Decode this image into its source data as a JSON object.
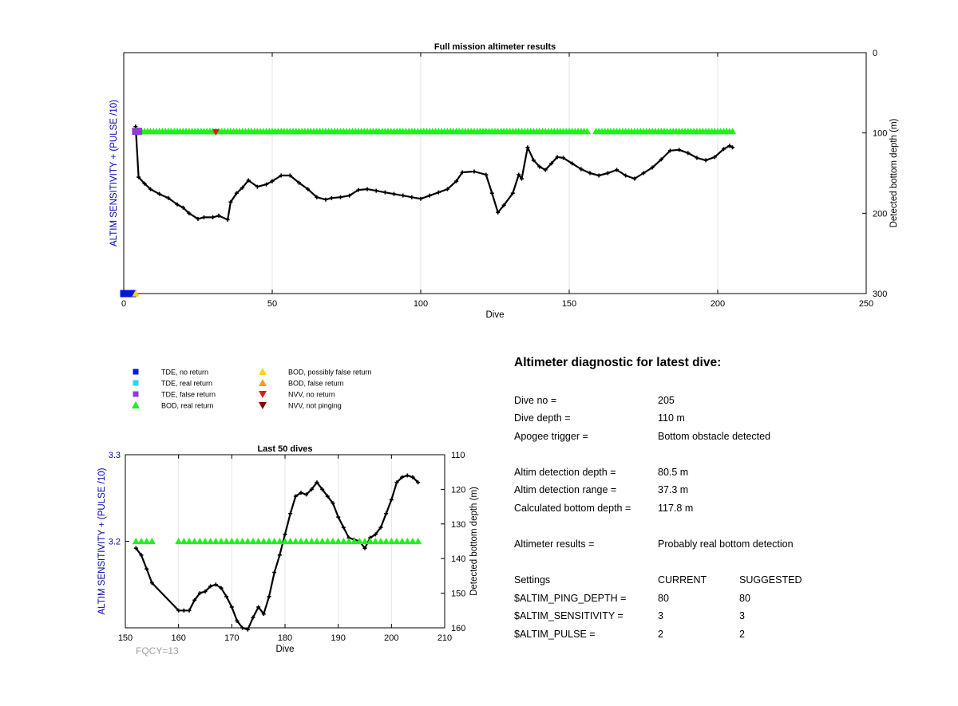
{
  "colors": {
    "axis": "#000000",
    "grid": "#e6e6e6",
    "left_axis_label": "#0000b4",
    "tde_no_return": "#0018d6",
    "tde_real_return": "#28d8f0",
    "tde_false_return": "#8e3fcf",
    "bod_real_return": "#1ff01f",
    "bod_possibly_false_return": "#ffd21a",
    "bod_false_return": "#ff9a1a",
    "nvv_no_return": "#e31a1a",
    "nvv_not_pinging": "#8a0000",
    "depth_line": "#000000",
    "fqcy_text": "#a0a0a0"
  },
  "legend": [
    {
      "label": "TDE, no return",
      "marker": "square",
      "color_key": "tde_no_return"
    },
    {
      "label": "TDE, real return",
      "marker": "square",
      "color_key": "tde_real_return"
    },
    {
      "label": "TDE, false return",
      "marker": "square",
      "color_key": "tde_false_return"
    },
    {
      "label": "BOD, real return",
      "marker": "triangle-up",
      "color_key": "bod_real_return"
    },
    {
      "label": "BOD, possibly false return",
      "marker": "triangle-up",
      "color_key": "bod_possibly_false_return"
    },
    {
      "label": "BOD, false return",
      "marker": "triangle-up",
      "color_key": "bod_false_return"
    },
    {
      "label": "NVV, no return",
      "marker": "triangle-down",
      "color_key": "nvv_no_return"
    },
    {
      "label": "NVV, not pinging",
      "marker": "triangle-down",
      "color_key": "nvv_not_pinging"
    }
  ],
  "fqcy_label": "FQCY=13",
  "chart_data": [
    {
      "type": "line",
      "title": "Full mission altimeter results",
      "xlabel": "Dive",
      "ylabel_left": "ALTIM SENSITIVITY + (PULSE /10)",
      "ylabel_right": "Detected bottom depth (m)",
      "xlim": [
        0,
        250
      ],
      "xticks": [
        0,
        50,
        100,
        150,
        200,
        250
      ],
      "right_ylim": [
        0,
        300
      ],
      "right_y_reversed": true,
      "right_yticks": [
        0,
        100,
        200,
        300
      ],
      "left_yticks": [],
      "grid": "x-only",
      "series": [
        {
          "marker": "plus",
          "color_key": "depth_line",
          "axis": "right",
          "points": [
            [
              4,
              92
            ],
            [
              5,
              155
            ],
            [
              7,
              163
            ],
            [
              9,
              170
            ],
            [
              12,
              176
            ],
            [
              15,
              181
            ],
            [
              18,
              189
            ],
            [
              20,
              193
            ],
            [
              22,
              200
            ],
            [
              25,
              207
            ],
            [
              27,
              205
            ],
            [
              30,
              205
            ],
            [
              32,
              203
            ],
            [
              35,
              208
            ],
            [
              36,
              186
            ],
            [
              38,
              175
            ],
            [
              40,
              168
            ],
            [
              42,
              159
            ],
            [
              45,
              167
            ],
            [
              48,
              164
            ],
            [
              50,
              160
            ],
            [
              53,
              153
            ],
            [
              56,
              153
            ],
            [
              59,
              162
            ],
            [
              62,
              170
            ],
            [
              65,
              180
            ],
            [
              68,
              183
            ],
            [
              70,
              181
            ],
            [
              73,
              180
            ],
            [
              76,
              178
            ],
            [
              79,
              171
            ],
            [
              82,
              170
            ],
            [
              85,
              172
            ],
            [
              88,
              174
            ],
            [
              91,
              176
            ],
            [
              94,
              178
            ],
            [
              97,
              180
            ],
            [
              100,
              182
            ],
            [
              103,
              178
            ],
            [
              106,
              174
            ],
            [
              109,
              170
            ],
            [
              112,
              160
            ],
            [
              114,
              149
            ],
            [
              118,
              148
            ],
            [
              122,
              152
            ],
            [
              124,
              175
            ],
            [
              126,
              199
            ],
            [
              128,
              190
            ],
            [
              131,
              175
            ],
            [
              133,
              152
            ],
            [
              134,
              157
            ],
            [
              136,
              118
            ],
            [
              138,
              134
            ],
            [
              140,
              142
            ],
            [
              142,
              146
            ],
            [
              144,
              138
            ],
            [
              146,
              130
            ],
            [
              148,
              131
            ],
            [
              151,
              138
            ],
            [
              154,
              145
            ],
            [
              157,
              150
            ],
            [
              160,
              153
            ],
            [
              163,
              150
            ],
            [
              166,
              146
            ],
            [
              169,
              153
            ],
            [
              172,
              157
            ],
            [
              175,
              150
            ],
            [
              178,
              143
            ],
            [
              181,
              133
            ],
            [
              184,
              122
            ],
            [
              187,
              121
            ],
            [
              190,
              125
            ],
            [
              193,
              131
            ],
            [
              196,
              134
            ],
            [
              199,
              130
            ],
            [
              202,
              120
            ],
            [
              204,
              116
            ],
            [
              205,
              118
            ]
          ]
        },
        {
          "marker": "triangle-up",
          "color_key": "bod_real_return",
          "axis": "right",
          "y": 98,
          "x_ranges": [
            [
              6,
              66
            ],
            [
              67,
              81
            ],
            [
              82,
              156
            ],
            [
              159,
              205
            ]
          ]
        },
        {
          "marker": "square",
          "color_key": "tde_false_return",
          "axis": "right",
          "x": [
            4,
            5
          ],
          "y": 98
        },
        {
          "marker": "triangle-down",
          "color_key": "nvv_no_return",
          "axis": "right",
          "x": [
            31
          ],
          "y": 99
        },
        {
          "marker": "square",
          "color_key": "tde_no_return",
          "axis": "right",
          "x": [
            0,
            1,
            2,
            3
          ],
          "y": 300
        },
        {
          "marker": "triangle-up",
          "color_key": "bod_possibly_false_return",
          "axis": "right",
          "x": [
            4
          ],
          "y": 300
        }
      ]
    },
    {
      "type": "line",
      "title": "Last 50 dives",
      "xlabel": "Dive",
      "ylabel_left": "ALTIM SENSITIVITY + (PULSE /10)",
      "ylabel_right": "Detected bottom depth (m)",
      "xlim": [
        150,
        210
      ],
      "xticks": [
        150,
        160,
        170,
        180,
        190,
        200,
        210
      ],
      "left_ylim": [
        3.1,
        3.3
      ],
      "left_yticks": [
        3.2,
        3.3
      ],
      "right_ylim": [
        110,
        160
      ],
      "right_y_reversed": true,
      "right_yticks": [
        110,
        120,
        130,
        140,
        150,
        160
      ],
      "grid": "x-only",
      "series": [
        {
          "marker": "plus",
          "color_key": "depth_line",
          "axis": "right",
          "points": [
            [
              152,
              137
            ],
            [
              153,
              139
            ],
            [
              154,
              143
            ],
            [
              155,
              147
            ],
            [
              160,
              155
            ],
            [
              161,
              155
            ],
            [
              162,
              155
            ],
            [
              163,
              152
            ],
            [
              164,
              150
            ],
            [
              165,
              149.5
            ],
            [
              166,
              148
            ],
            [
              167,
              147.5
            ],
            [
              168,
              148.5
            ],
            [
              169,
              151
            ],
            [
              170,
              154
            ],
            [
              171,
              158
            ],
            [
              172,
              160
            ],
            [
              173,
              160.5
            ],
            [
              174,
              157
            ],
            [
              175,
              154
            ],
            [
              176,
              156
            ],
            [
              177,
              151
            ],
            [
              178,
              144
            ],
            [
              179,
              139
            ],
            [
              180,
              133
            ],
            [
              181,
              127
            ],
            [
              182,
              122
            ],
            [
              183,
              121
            ],
            [
              184,
              121.5
            ],
            [
              185,
              120
            ],
            [
              186,
              118
            ],
            [
              187,
              120
            ],
            [
              188,
              122
            ],
            [
              189,
              124
            ],
            [
              190,
              128
            ],
            [
              191,
              131
            ],
            [
              192,
              134
            ],
            [
              193,
              134.5
            ],
            [
              194,
              135
            ],
            [
              195,
              137
            ],
            [
              196,
              134
            ],
            [
              197,
              133
            ],
            [
              198,
              131
            ],
            [
              199,
              127
            ],
            [
              200,
              123
            ],
            [
              201,
              118
            ],
            [
              202,
              116.5
            ],
            [
              203,
              116
            ],
            [
              204,
              116.5
            ],
            [
              205,
              118
            ]
          ]
        },
        {
          "marker": "triangle-up",
          "color_key": "bod_real_return",
          "axis": "left",
          "y": 3.2,
          "x_ranges": [
            [
              152,
              155
            ],
            [
              160,
              205
            ]
          ]
        }
      ]
    }
  ],
  "diagnostic": {
    "title": "Altimeter diagnostic for latest dive:",
    "dive_no": {
      "label": "Dive no =",
      "value": "205"
    },
    "dive_depth": {
      "label": "Dive depth =",
      "value": "110 m"
    },
    "apogee_trigger": {
      "label": "Apogee trigger =",
      "value": "Bottom obstacle detected"
    },
    "altim_detection_depth": {
      "label": "Altim detection depth =",
      "value": "80.5 m"
    },
    "altim_detection_range": {
      "label": "Altim detection range =",
      "value": "37.3 m"
    },
    "calculated_bottom_depth": {
      "label": "Calculated bottom depth =",
      "value": "117.8 m"
    },
    "altimeter_results": {
      "label": "Altimeter results =",
      "value": "Probably real bottom detection"
    },
    "settings_header": {
      "label": "Settings",
      "current": "CURRENT",
      "suggested": "SUGGESTED"
    },
    "ping_depth": {
      "label": "$ALTIM_PING_DEPTH =",
      "current": "80",
      "suggested": "80"
    },
    "sensitivity": {
      "label": "$ALTIM_SENSITIVITY =",
      "current": "3",
      "suggested": "3"
    },
    "pulse": {
      "label": "$ALTIM_PULSE =",
      "current": "2",
      "suggested": "2"
    }
  }
}
